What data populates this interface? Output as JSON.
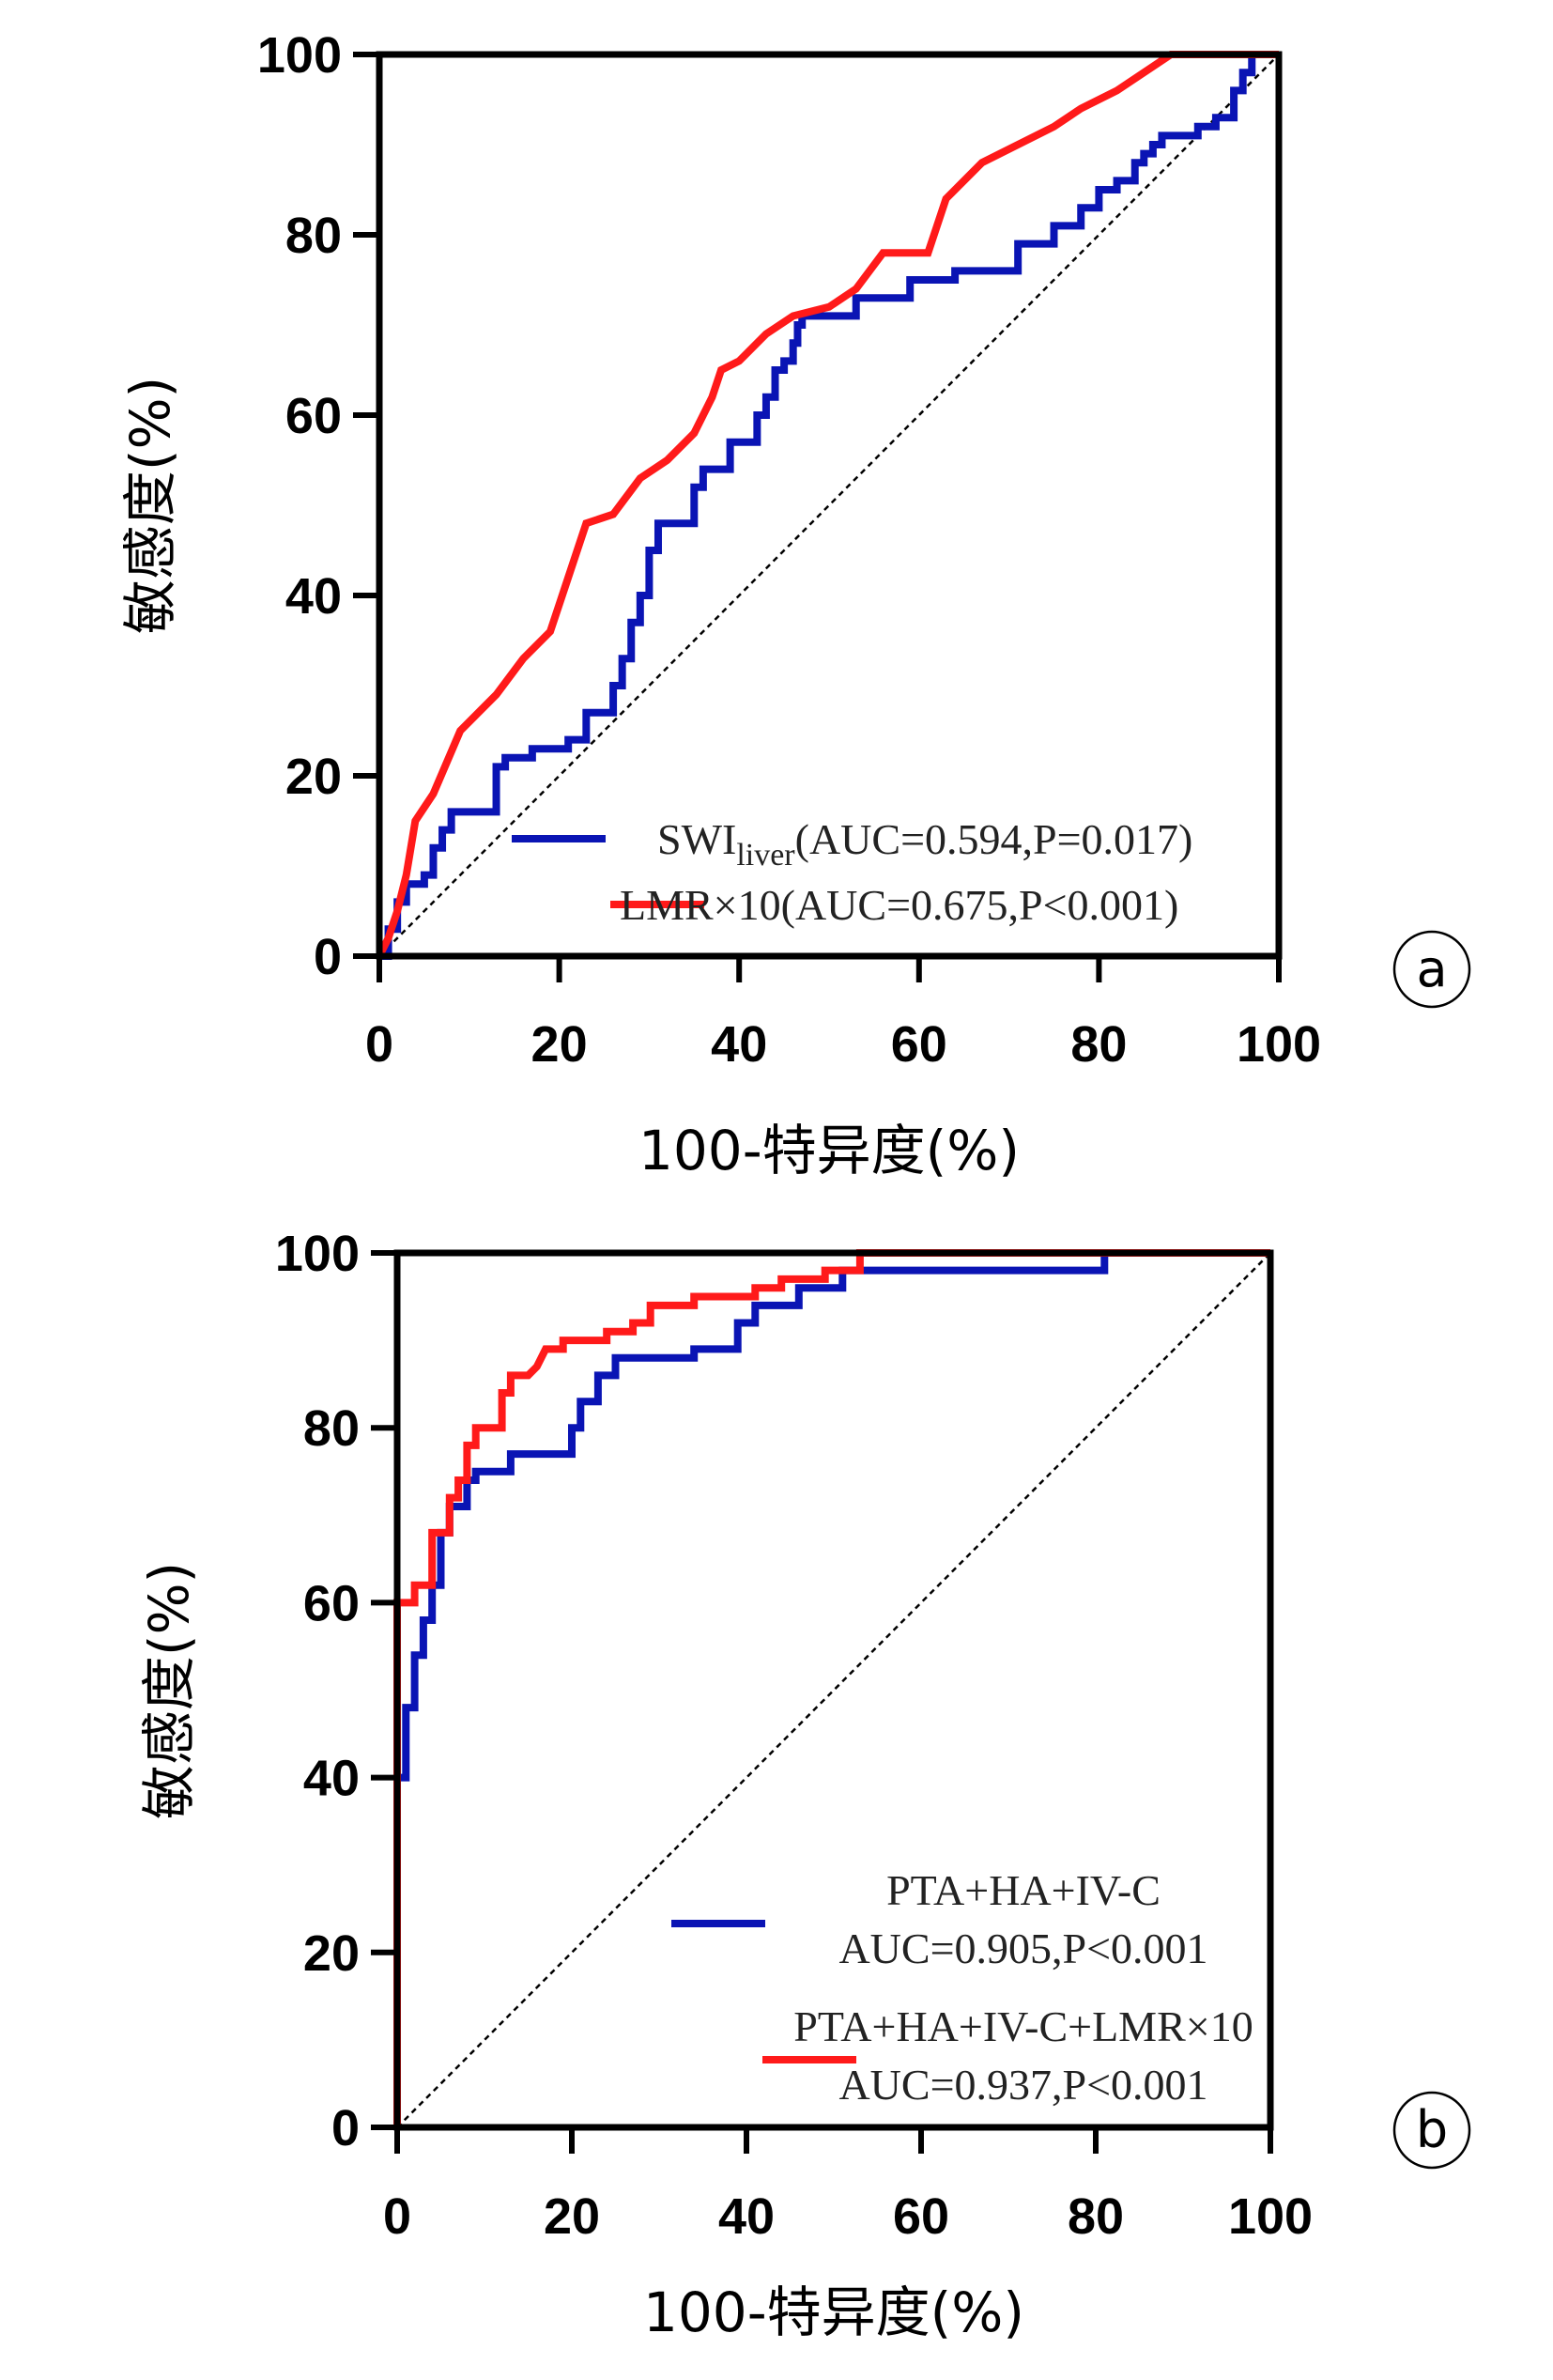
{
  "colors": {
    "red": "#ff1a1a",
    "blue": "#0a14b4",
    "axis": "#000000"
  },
  "chart_data": [
    {
      "type": "line",
      "panel_label": "a",
      "xlabel": "100-特异度(%)",
      "ylabel": "敏感度(%)",
      "xlim": [
        0,
        100
      ],
      "ylim": [
        0,
        100
      ],
      "xticks": [
        "0",
        "20",
        "40",
        "60",
        "80",
        "100"
      ],
      "yticks": [
        "0",
        "20",
        "40",
        "60",
        "80",
        "100"
      ],
      "legend_position": "bottom-right",
      "reference_line": "diagonal",
      "series": [
        {
          "name": "SWI",
          "name_sub": "liver",
          "legend_rest": "(AUC=0.594,P=0.017)",
          "auc": 0.594,
          "p": "0.017",
          "color": "#0a14b4",
          "points": [
            [
              0,
              0
            ],
            [
              1,
              0
            ],
            [
              1,
              3
            ],
            [
              2,
              3
            ],
            [
              2,
              6
            ],
            [
              3,
              6
            ],
            [
              3,
              8
            ],
            [
              5,
              8
            ],
            [
              5,
              9
            ],
            [
              6,
              9
            ],
            [
              6,
              12
            ],
            [
              7,
              12
            ],
            [
              7,
              14
            ],
            [
              8,
              14
            ],
            [
              8,
              16
            ],
            [
              13,
              16
            ],
            [
              13,
              21
            ],
            [
              14,
              21
            ],
            [
              14,
              22
            ],
            [
              17,
              22
            ],
            [
              17,
              23
            ],
            [
              21,
              23
            ],
            [
              21,
              24
            ],
            [
              23,
              24
            ],
            [
              23,
              27
            ],
            [
              26,
              27
            ],
            [
              26,
              30
            ],
            [
              27,
              30
            ],
            [
              27,
              33
            ],
            [
              28,
              33
            ],
            [
              28,
              37
            ],
            [
              29,
              37
            ],
            [
              29,
              40
            ],
            [
              30,
              40
            ],
            [
              30,
              45
            ],
            [
              31,
              45
            ],
            [
              31,
              48
            ],
            [
              35,
              48
            ],
            [
              35,
              52
            ],
            [
              36,
              52
            ],
            [
              36,
              54
            ],
            [
              39,
              54
            ],
            [
              39,
              57
            ],
            [
              42,
              57
            ],
            [
              42,
              60
            ],
            [
              43,
              60
            ],
            [
              43,
              62
            ],
            [
              44,
              62
            ],
            [
              44,
              65
            ],
            [
              45,
              65
            ],
            [
              45,
              66
            ],
            [
              46,
              66
            ],
            [
              46,
              68
            ],
            [
              46.5,
              68
            ],
            [
              46.5,
              70
            ],
            [
              47,
              70
            ],
            [
              47,
              71
            ],
            [
              53,
              71
            ],
            [
              53,
              73
            ],
            [
              59,
              73
            ],
            [
              59,
              75
            ],
            [
              64,
              75
            ],
            [
              64,
              76
            ],
            [
              71,
              76
            ],
            [
              71,
              79
            ],
            [
              75,
              79
            ],
            [
              75,
              81
            ],
            [
              78,
              81
            ],
            [
              78,
              83
            ],
            [
              80,
              83
            ],
            [
              80,
              85
            ],
            [
              82,
              85
            ],
            [
              82,
              86
            ],
            [
              84,
              86
            ],
            [
              84,
              88
            ],
            [
              85,
              88
            ],
            [
              85,
              89
            ],
            [
              86,
              89
            ],
            [
              86,
              90
            ],
            [
              87,
              90
            ],
            [
              87,
              91
            ],
            [
              91,
              91
            ],
            [
              91,
              92
            ],
            [
              93,
              92
            ],
            [
              93,
              93
            ],
            [
              95,
              93
            ],
            [
              95,
              96
            ],
            [
              96,
              96
            ],
            [
              96,
              98
            ],
            [
              97,
              98
            ],
            [
              97,
              100
            ],
            [
              100,
              100
            ]
          ]
        },
        {
          "name": "LMR×10",
          "legend_rest": "(AUC=0.675,P<0.001)",
          "auc": 0.675,
          "p": "<0.001",
          "color": "#ff1a1a",
          "points": [
            [
              0,
              0
            ],
            [
              1,
              2
            ],
            [
              2,
              5
            ],
            [
              3,
              9
            ],
            [
              4,
              15
            ],
            [
              6,
              18
            ],
            [
              9,
              25
            ],
            [
              13,
              29
            ],
            [
              16,
              33
            ],
            [
              19,
              36
            ],
            [
              21,
              42
            ],
            [
              23,
              48
            ],
            [
              26,
              49
            ],
            [
              29,
              53
            ],
            [
              32,
              55
            ],
            [
              35,
              58
            ],
            [
              37,
              62
            ],
            [
              38,
              65
            ],
            [
              40,
              66
            ],
            [
              43,
              69
            ],
            [
              46,
              71
            ],
            [
              50,
              72
            ],
            [
              53,
              74
            ],
            [
              56,
              78
            ],
            [
              61,
              78
            ],
            [
              63,
              84
            ],
            [
              67,
              88
            ],
            [
              75,
              92
            ],
            [
              78,
              94
            ],
            [
              82,
              96
            ],
            [
              88,
              100
            ],
            [
              100,
              100
            ]
          ]
        }
      ]
    },
    {
      "type": "line",
      "panel_label": "b",
      "xlabel": "100-特异度(%)",
      "ylabel": "敏感度(%)",
      "xlim": [
        0,
        100
      ],
      "ylim": [
        0,
        100
      ],
      "xticks": [
        "0",
        "20",
        "40",
        "60",
        "80",
        "100"
      ],
      "yticks": [
        "0",
        "20",
        "40",
        "60",
        "80",
        "100"
      ],
      "legend_position": "bottom-right",
      "reference_line": "diagonal",
      "series": [
        {
          "name": "PTA+HA+IV-C",
          "legend_rest": "AUC=0.905,P<0.001",
          "auc": 0.905,
          "p": "<0.001",
          "color": "#0a14b4",
          "points": [
            [
              0,
              0
            ],
            [
              0,
              40
            ],
            [
              1,
              40
            ],
            [
              1,
              48
            ],
            [
              2,
              48
            ],
            [
              2,
              54
            ],
            [
              3,
              54
            ],
            [
              3,
              58
            ],
            [
              4,
              58
            ],
            [
              4,
              62
            ],
            [
              5,
              62
            ],
            [
              5,
              68
            ],
            [
              6,
              68
            ],
            [
              6,
              71
            ],
            [
              8,
              71
            ],
            [
              8,
              74
            ],
            [
              9,
              74
            ],
            [
              9,
              75
            ],
            [
              13,
              75
            ],
            [
              13,
              77
            ],
            [
              20,
              77
            ],
            [
              20,
              80
            ],
            [
              21,
              80
            ],
            [
              21,
              83
            ],
            [
              23,
              83
            ],
            [
              23,
              86
            ],
            [
              25,
              86
            ],
            [
              25,
              88
            ],
            [
              34,
              88
            ],
            [
              34,
              89
            ],
            [
              39,
              89
            ],
            [
              39,
              92
            ],
            [
              41,
              92
            ],
            [
              41,
              94
            ],
            [
              46,
              94
            ],
            [
              46,
              96
            ],
            [
              51,
              96
            ],
            [
              51,
              98
            ],
            [
              81,
              98
            ],
            [
              81,
              100
            ],
            [
              100,
              100
            ]
          ]
        },
        {
          "name": "PTA+HA+IV-C+LMR×10",
          "legend_rest": "AUC=0.937,P<0.001",
          "auc": 0.937,
          "p": "<0.001",
          "color": "#ff1a1a",
          "points": [
            [
              0,
              0
            ],
            [
              0,
              60
            ],
            [
              2,
              60
            ],
            [
              2,
              62
            ],
            [
              4,
              62
            ],
            [
              4,
              68
            ],
            [
              6,
              68
            ],
            [
              6,
              72
            ],
            [
              7,
              72
            ],
            [
              7,
              74
            ],
            [
              8,
              74
            ],
            [
              8,
              78
            ],
            [
              9,
              78
            ],
            [
              9,
              80
            ],
            [
              12,
              80
            ],
            [
              12,
              84
            ],
            [
              13,
              84
            ],
            [
              13,
              86
            ],
            [
              15,
              86
            ],
            [
              16,
              87
            ],
            [
              17,
              89
            ],
            [
              19,
              89
            ],
            [
              19,
              90
            ],
            [
              24,
              90
            ],
            [
              24,
              91
            ],
            [
              27,
              91
            ],
            [
              27,
              92
            ],
            [
              29,
              92
            ],
            [
              29,
              94
            ],
            [
              34,
              94
            ],
            [
              34,
              95
            ],
            [
              41,
              95
            ],
            [
              41,
              96
            ],
            [
              44,
              96
            ],
            [
              44,
              97
            ],
            [
              49,
              97
            ],
            [
              49,
              98
            ],
            [
              53,
              98
            ],
            [
              53,
              100
            ],
            [
              100,
              100
            ]
          ]
        }
      ]
    }
  ]
}
